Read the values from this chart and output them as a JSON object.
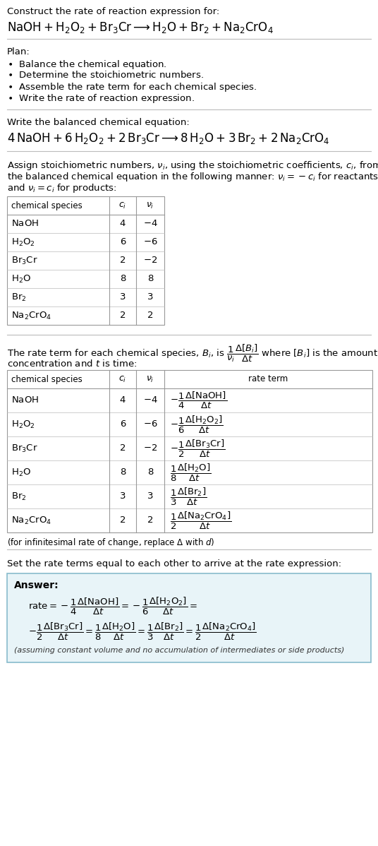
{
  "bg_color": "#ffffff",
  "text_color": "#000000",
  "title_line": "Construct the rate of reaction expression for:",
  "rxn_unbalanced": "$\\mathrm{NaOH + H_2O_2 + Br_3Cr} \\longrightarrow \\mathrm{H_2O + Br_2 + Na_2CrO_4}$",
  "plan_header": "Plan:",
  "plan_items": [
    "\\bullet  Balance the chemical equation.",
    "\\bullet  Determine the stoichiometric numbers.",
    "\\bullet  Assemble the rate term for each chemical species.",
    "\\bullet  Write the rate of reaction expression."
  ],
  "balanced_header": "Write the balanced chemical equation:",
  "rxn_balanced": "$\\mathrm{4\\,NaOH + 6\\,H_2O_2 + 2\\,Br_3Cr} \\longrightarrow \\mathrm{8\\,H_2O + 3\\,Br_2 + 2\\,Na_2CrO_4}$",
  "stoich_para": [
    "Assign stoichiometric numbers, $\\nu_i$, using the stoichiometric coefficients, $c_i$, from",
    "the balanced chemical equation in the following manner: $\\nu_i = -c_i$ for reactants",
    "and $\\nu_i = c_i$ for products:"
  ],
  "t1_col_headers": [
    "chemical species",
    "$c_i$",
    "$\\nu_i$"
  ],
  "t1_rows": [
    [
      "$\\mathrm{NaOH}$",
      "4",
      "$-4$"
    ],
    [
      "$\\mathrm{H_2O_2}$",
      "6",
      "$-6$"
    ],
    [
      "$\\mathrm{Br_3Cr}$",
      "2",
      "$-2$"
    ],
    [
      "$\\mathrm{H_2O}$",
      "8",
      "8"
    ],
    [
      "$\\mathrm{Br_2}$",
      "3",
      "3"
    ],
    [
      "$\\mathrm{Na_2CrO_4}$",
      "2",
      "2"
    ]
  ],
  "rate_para_line1": "The rate term for each chemical species, $B_i$, is $\\dfrac{1}{\\nu_i}\\dfrac{\\Delta[B_i]}{\\Delta t}$ where $[B_i]$ is the amount",
  "rate_para_line2": "concentration and $t$ is time:",
  "t2_col_headers": [
    "chemical species",
    "$c_i$",
    "$\\nu_i$",
    "rate term"
  ],
  "t2_rows": [
    [
      "$\\mathrm{NaOH}$",
      "4",
      "$-4$",
      "$-\\dfrac{1}{4}\\dfrac{\\Delta[\\mathrm{NaOH}]}{\\Delta t}$"
    ],
    [
      "$\\mathrm{H_2O_2}$",
      "6",
      "$-6$",
      "$-\\dfrac{1}{6}\\dfrac{\\Delta[\\mathrm{H_2O_2}]}{\\Delta t}$"
    ],
    [
      "$\\mathrm{Br_3Cr}$",
      "2",
      "$-2$",
      "$-\\dfrac{1}{2}\\dfrac{\\Delta[\\mathrm{Br_3Cr}]}{\\Delta t}$"
    ],
    [
      "$\\mathrm{H_2O}$",
      "8",
      "8",
      "$\\dfrac{1}{8}\\dfrac{\\Delta[\\mathrm{H_2O}]}{\\Delta t}$"
    ],
    [
      "$\\mathrm{Br_2}$",
      "3",
      "3",
      "$\\dfrac{1}{3}\\dfrac{\\Delta[\\mathrm{Br_2}]}{\\Delta t}$"
    ],
    [
      "$\\mathrm{Na_2CrO_4}$",
      "2",
      "2",
      "$\\dfrac{1}{2}\\dfrac{\\Delta[\\mathrm{Na_2CrO_4}]}{\\Delta t}$"
    ]
  ],
  "infinitesimal_note": "(for infinitesimal rate of change, replace $\\Delta$ with $d$)",
  "set_equal_text": "Set the rate terms equal to each other to arrive at the rate expression:",
  "answer_label": "Answer:",
  "answer_line1": "$\\mathrm{rate} = -\\dfrac{1}{4}\\dfrac{\\Delta[\\mathrm{NaOH}]}{\\Delta t} = -\\dfrac{1}{6}\\dfrac{\\Delta[\\mathrm{H_2O_2}]}{\\Delta t} =$",
  "answer_line2": "$-\\dfrac{1}{2}\\dfrac{\\Delta[\\mathrm{Br_3Cr}]}{\\Delta t} = \\dfrac{1}{8}\\dfrac{\\Delta[\\mathrm{H_2O}]}{\\Delta t} = \\dfrac{1}{3}\\dfrac{\\Delta[\\mathrm{Br_2}]}{\\Delta t} = \\dfrac{1}{2}\\dfrac{\\Delta[\\mathrm{Na_2CrO_4}]}{\\Delta t}$",
  "answer_note": "(assuming constant volume and no accumulation of intermediates or side products)",
  "answer_box_bg": "#e8f4f8",
  "answer_box_border": "#88bbcc"
}
